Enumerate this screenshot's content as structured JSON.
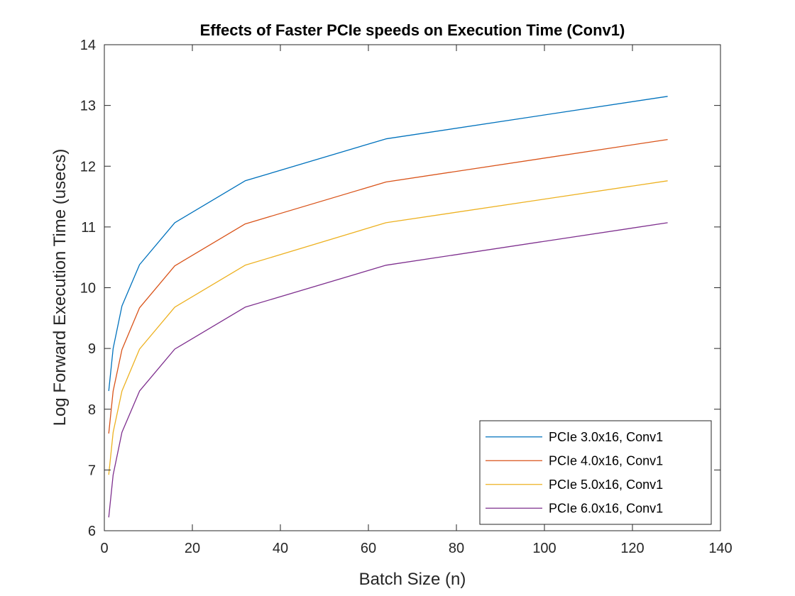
{
  "chart_data": {
    "type": "line",
    "title": "Effects of Faster PCIe speeds on Execution Time (Conv1)",
    "xlabel": "Batch Size (n)",
    "ylabel": "Log Forward Execution Time (usecs)",
    "xlim": [
      0,
      140
    ],
    "ylim": [
      6,
      14
    ],
    "xticks": [
      0,
      20,
      40,
      60,
      80,
      100,
      120,
      140
    ],
    "yticks": [
      6,
      7,
      8,
      9,
      10,
      11,
      12,
      13,
      14
    ],
    "grid": false,
    "legend_position": "bottom-right",
    "x": [
      1,
      2,
      4,
      8,
      16,
      32,
      64,
      128
    ],
    "series": [
      {
        "name": "PCIe 3.0x16, Conv1",
        "color": "#0072BD",
        "values": [
          8.3,
          9.0,
          9.7,
          10.38,
          11.07,
          11.76,
          12.45,
          13.15
        ]
      },
      {
        "name": "PCIe 4.0x16, Conv1",
        "color": "#D95319",
        "values": [
          7.6,
          8.3,
          8.98,
          9.67,
          10.36,
          11.05,
          11.74,
          12.44
        ]
      },
      {
        "name": "PCIe 5.0x16, Conv1",
        "color": "#EDB120",
        "values": [
          6.92,
          7.62,
          8.3,
          8.99,
          9.68,
          10.37,
          11.07,
          11.76
        ]
      },
      {
        "name": "PCIe 6.0x16, Conv1",
        "color": "#7E2F8E",
        "values": [
          6.22,
          6.92,
          7.62,
          8.3,
          8.99,
          9.68,
          10.37,
          11.07
        ]
      }
    ]
  }
}
